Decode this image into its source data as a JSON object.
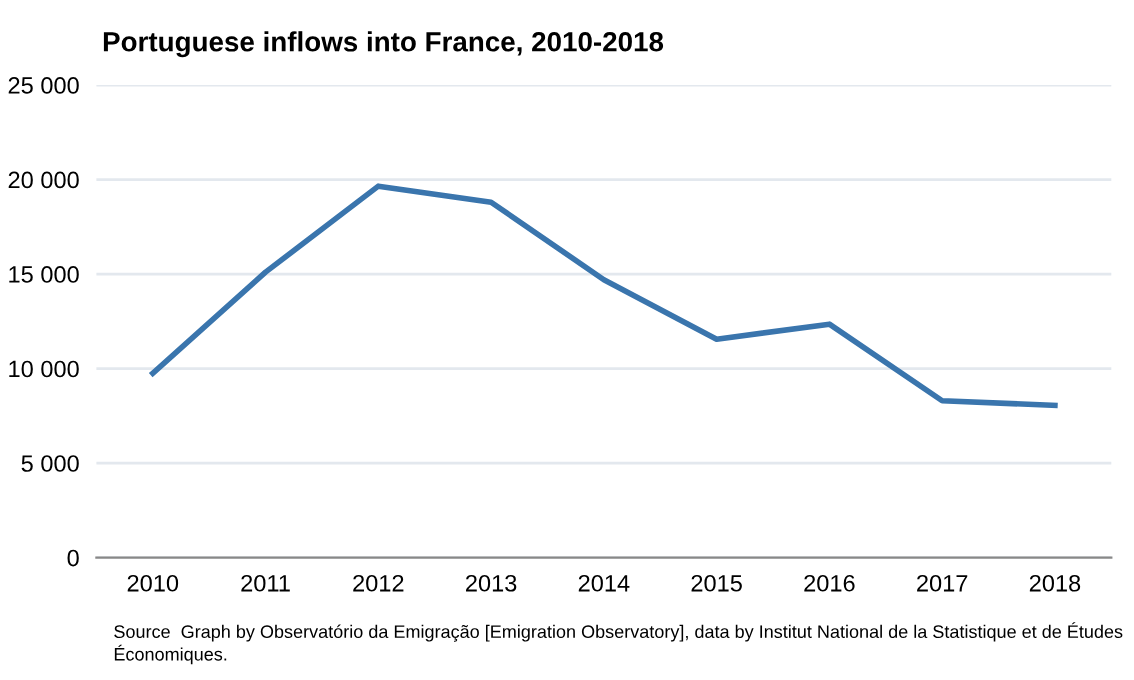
{
  "chart_data": {
    "type": "line",
    "title": "Portuguese inflows into France, 2010-2018",
    "categories": [
      "2010",
      "2011",
      "2012",
      "2013",
      "2014",
      "2015",
      "2016",
      "2017",
      "2018"
    ],
    "series": [
      {
        "color": "#3a75ad",
        "values": [
          9750,
          15100,
          19650,
          18800,
          14700,
          11550,
          12350,
          8300,
          8050
        ]
      }
    ],
    "ylim": [
      0,
      25000
    ],
    "yticks": [
      0,
      {
        "value": 5000,
        "label": "5 000"
      },
      {
        "value": 10000,
        "label": "10 000"
      },
      {
        "value": 15000,
        "label": "15 000"
      },
      {
        "value": 20000,
        "label": "20 000"
      },
      {
        "value": 25000,
        "label": "25 000"
      }
    ],
    "grid": "y",
    "annotations": [
      "Source  Graph by Observatório da Emigração [Emigration Observatory], data by Institut National de la Statistique et de Études Économiques."
    ]
  }
}
